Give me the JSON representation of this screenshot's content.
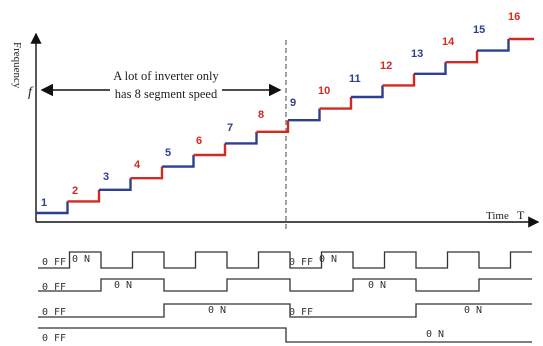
{
  "diagram": {
    "y_axis_label": "Frequency",
    "y_symbol": "f",
    "x_axis_label": "Time",
    "x_symbol": "T",
    "note_line1": "A lot of inverter only",
    "note_line2": "has 8 segment speed",
    "steps": [
      "1",
      "2",
      "3",
      "4",
      "5",
      "6",
      "7",
      "8",
      "9",
      "10",
      "11",
      "12",
      "13",
      "14",
      "15",
      "16"
    ],
    "colors": {
      "blue": "#2e3f8f",
      "red": "#d12a22",
      "axis": "#111111",
      "signal": "#333333"
    },
    "signals": [
      {
        "off_label": "0 FF",
        "on_label": "0 N",
        "second_off_label": "0 FF",
        "second_on_label": "0 N"
      },
      {
        "off_label": "0 FF",
        "on_label": "0 N",
        "second_on_label": "0 N"
      },
      {
        "off_label": "0 FF",
        "on_label": "0 N",
        "second_off_label": "0 FF",
        "second_on_label": "0 N"
      },
      {
        "off_label": "0 FF",
        "on_label": "0 N"
      }
    ]
  }
}
